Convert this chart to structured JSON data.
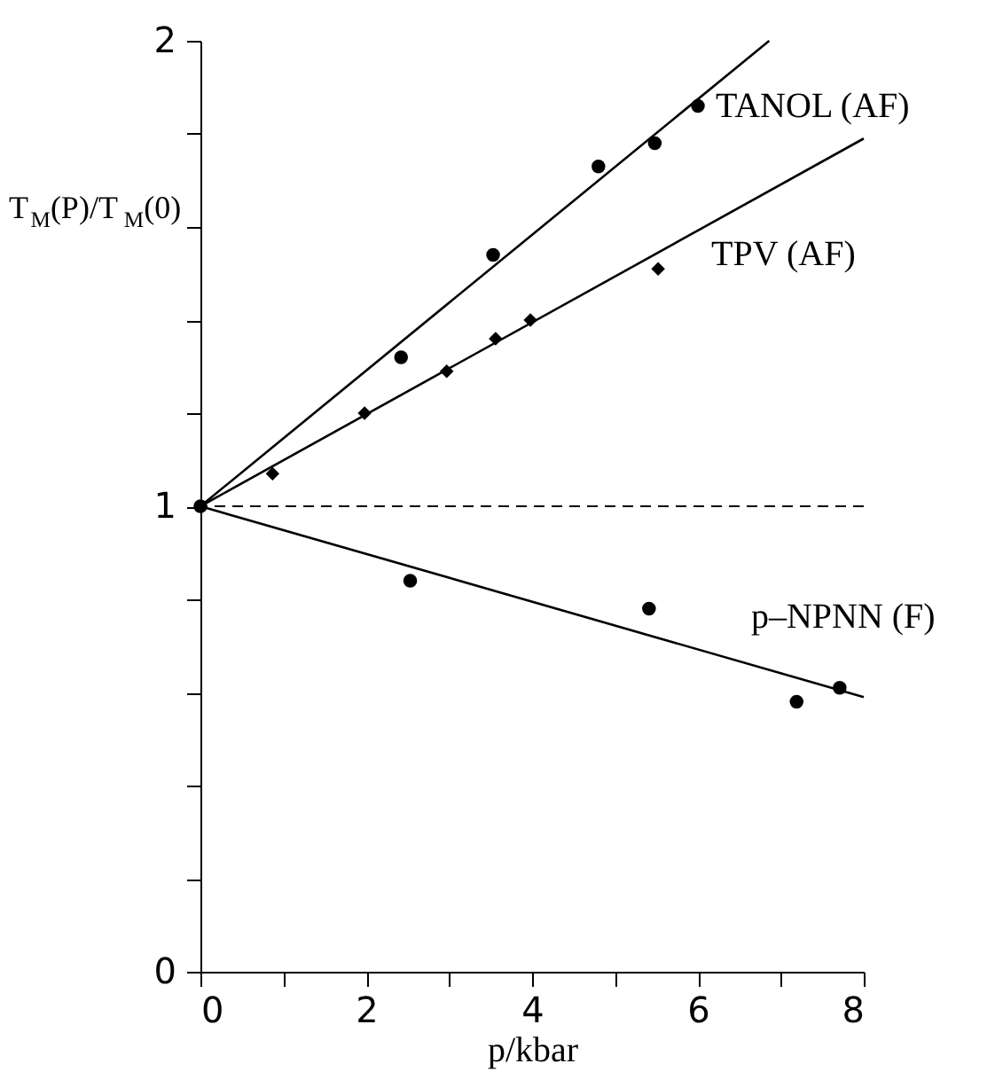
{
  "chart_data": {
    "type": "scatter",
    "xlabel": "p/kbar",
    "ylabel": "T$_{M}$(P)/T$_{M}$(0)",
    "xlim": [
      0,
      8
    ],
    "ylim": [
      0,
      2
    ],
    "xticks": [
      0,
      {
        "value": 1,
        "label": null
      },
      2,
      {
        "value": 3,
        "label": null
      },
      4,
      {
        "value": 5,
        "label": null
      },
      6,
      {
        "value": 7,
        "label": null
      },
      8
    ],
    "yticks": [
      0,
      {
        "value": 0.2,
        "label": null
      },
      {
        "value": 0.4,
        "label": null
      },
      {
        "value": 0.6,
        "label": null
      },
      {
        "value": 0.8,
        "label": null
      },
      1,
      {
        "value": 1.2,
        "label": null
      },
      {
        "value": 1.4,
        "label": null
      },
      {
        "value": 1.6,
        "label": null
      },
      {
        "value": 1.8,
        "label": null
      },
      2
    ],
    "series": [
      {
        "name": "TANOL (AF)",
        "type": "scatter",
        "marker": "circle",
        "color": "#000000",
        "x": [
          0,
          2.42,
          3.53,
          4.8,
          5.48,
          6.0
        ],
        "values": [
          1,
          1.32,
          1.54,
          1.73,
          1.78,
          1.86
        ]
      },
      {
        "name": "TPV (AF)",
        "type": "scatter",
        "marker": "diamond",
        "color": "#000000",
        "x": [
          0.87,
          1.98,
          2.97,
          3.56,
          3.98,
          5.52
        ],
        "values": [
          1.07,
          1.2,
          1.29,
          1.36,
          1.4,
          1.51
        ]
      },
      {
        "name": "p–NPNN (F)",
        "type": "scatter",
        "marker": "circle",
        "color": "#000000",
        "x": [
          2.53,
          5.41,
          7.19,
          7.71
        ],
        "values": [
          0.84,
          0.78,
          0.58,
          0.61
        ]
      },
      {
        "type": "line",
        "color": "#000000",
        "x": [
          0,
          6.86
        ],
        "values": [
          1,
          2.0
        ]
      },
      {
        "type": "line",
        "color": "#000000",
        "x": [
          0,
          8
        ],
        "values": [
          1,
          1.79
        ]
      },
      {
        "type": "line",
        "color": "#000000",
        "x": [
          0,
          8
        ],
        "values": [
          1,
          0.59
        ]
      }
    ],
    "ref_lines": [
      {
        "axis": "y",
        "value": 1,
        "line_style": "dashed",
        "color": "#000000"
      }
    ]
  }
}
